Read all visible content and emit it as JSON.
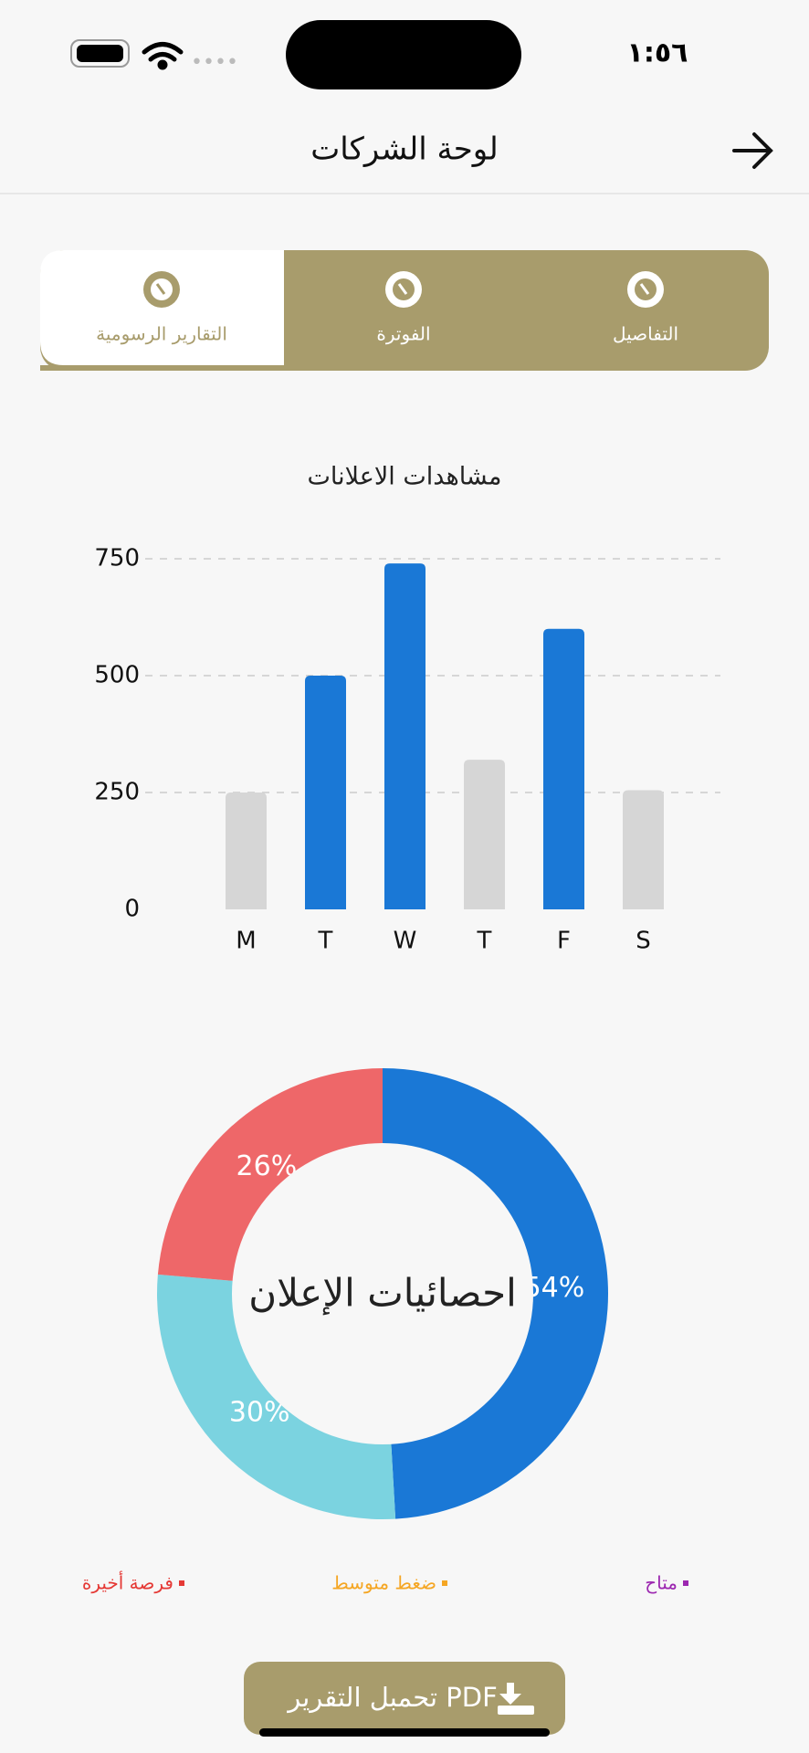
{
  "status_bar": {
    "time": "١:٥٦"
  },
  "header": {
    "title": "لوحة الشركات"
  },
  "tabs": [
    {
      "label": "التقارير الرسومية",
      "selected": true
    },
    {
      "label": "الفوترة",
      "selected": false
    },
    {
      "label": "التفاصيل",
      "selected": false
    }
  ],
  "chart_data": [
    {
      "type": "bar",
      "title": "مشاهدات الاعلانات",
      "categories": [
        "M",
        "T",
        "W",
        "T",
        "F",
        "S"
      ],
      "values": [
        250,
        500,
        740,
        320,
        600,
        255
      ],
      "colors": [
        "#d6d6d6",
        "#1a78d6",
        "#1a78d6",
        "#d6d6d6",
        "#1a78d6",
        "#d6d6d6"
      ],
      "ylim": [
        0,
        750
      ],
      "yticks": [
        0,
        250,
        500,
        750
      ],
      "grid": true
    },
    {
      "type": "pie",
      "center_label": "احصائيات الإعلان",
      "values": [
        54,
        30,
        26
      ],
      "value_labels": [
        "54%",
        "30%",
        "26%"
      ],
      "colors": [
        "#1a78d6",
        "#7bd3e0",
        "#ee6769"
      ],
      "hole": true
    }
  ],
  "legend": [
    {
      "label": "متاح",
      "color": "#9c27b0"
    },
    {
      "label": "ضغط متوسط",
      "color": "#f5a623"
    },
    {
      "label": "فرصة أخيرة",
      "color": "#e53935"
    }
  ],
  "button": {
    "label": "تحمبل التقرير PDF"
  }
}
